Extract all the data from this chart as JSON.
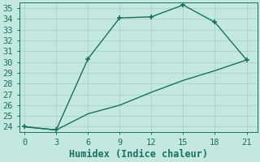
{
  "xlabel": "Humidex (Indice chaleur)",
  "bg_color": "#c2e8e0",
  "grid_color": "#aed4cc",
  "line_color": "#1a7060",
  "line1_x": [
    0,
    3,
    6,
    9,
    12,
    15,
    18,
    21
  ],
  "line1_y": [
    24.0,
    23.7,
    30.3,
    34.1,
    34.2,
    35.3,
    33.7,
    30.2
  ],
  "line2_x": [
    0,
    3,
    6,
    9,
    12,
    15,
    18,
    21
  ],
  "line2_y": [
    24.0,
    23.7,
    25.2,
    26.0,
    27.2,
    28.3,
    29.2,
    30.2
  ],
  "xlim": [
    -0.5,
    22
  ],
  "ylim": [
    23.5,
    35.5
  ],
  "xticks": [
    0,
    3,
    6,
    9,
    12,
    15,
    18,
    21
  ],
  "yticks": [
    24,
    25,
    26,
    27,
    28,
    29,
    30,
    31,
    32,
    33,
    34,
    35
  ],
  "marker": "+",
  "marker_size": 5,
  "linewidth": 1.0,
  "tick_labelsize": 7.5,
  "xlabel_fontsize": 8.5
}
